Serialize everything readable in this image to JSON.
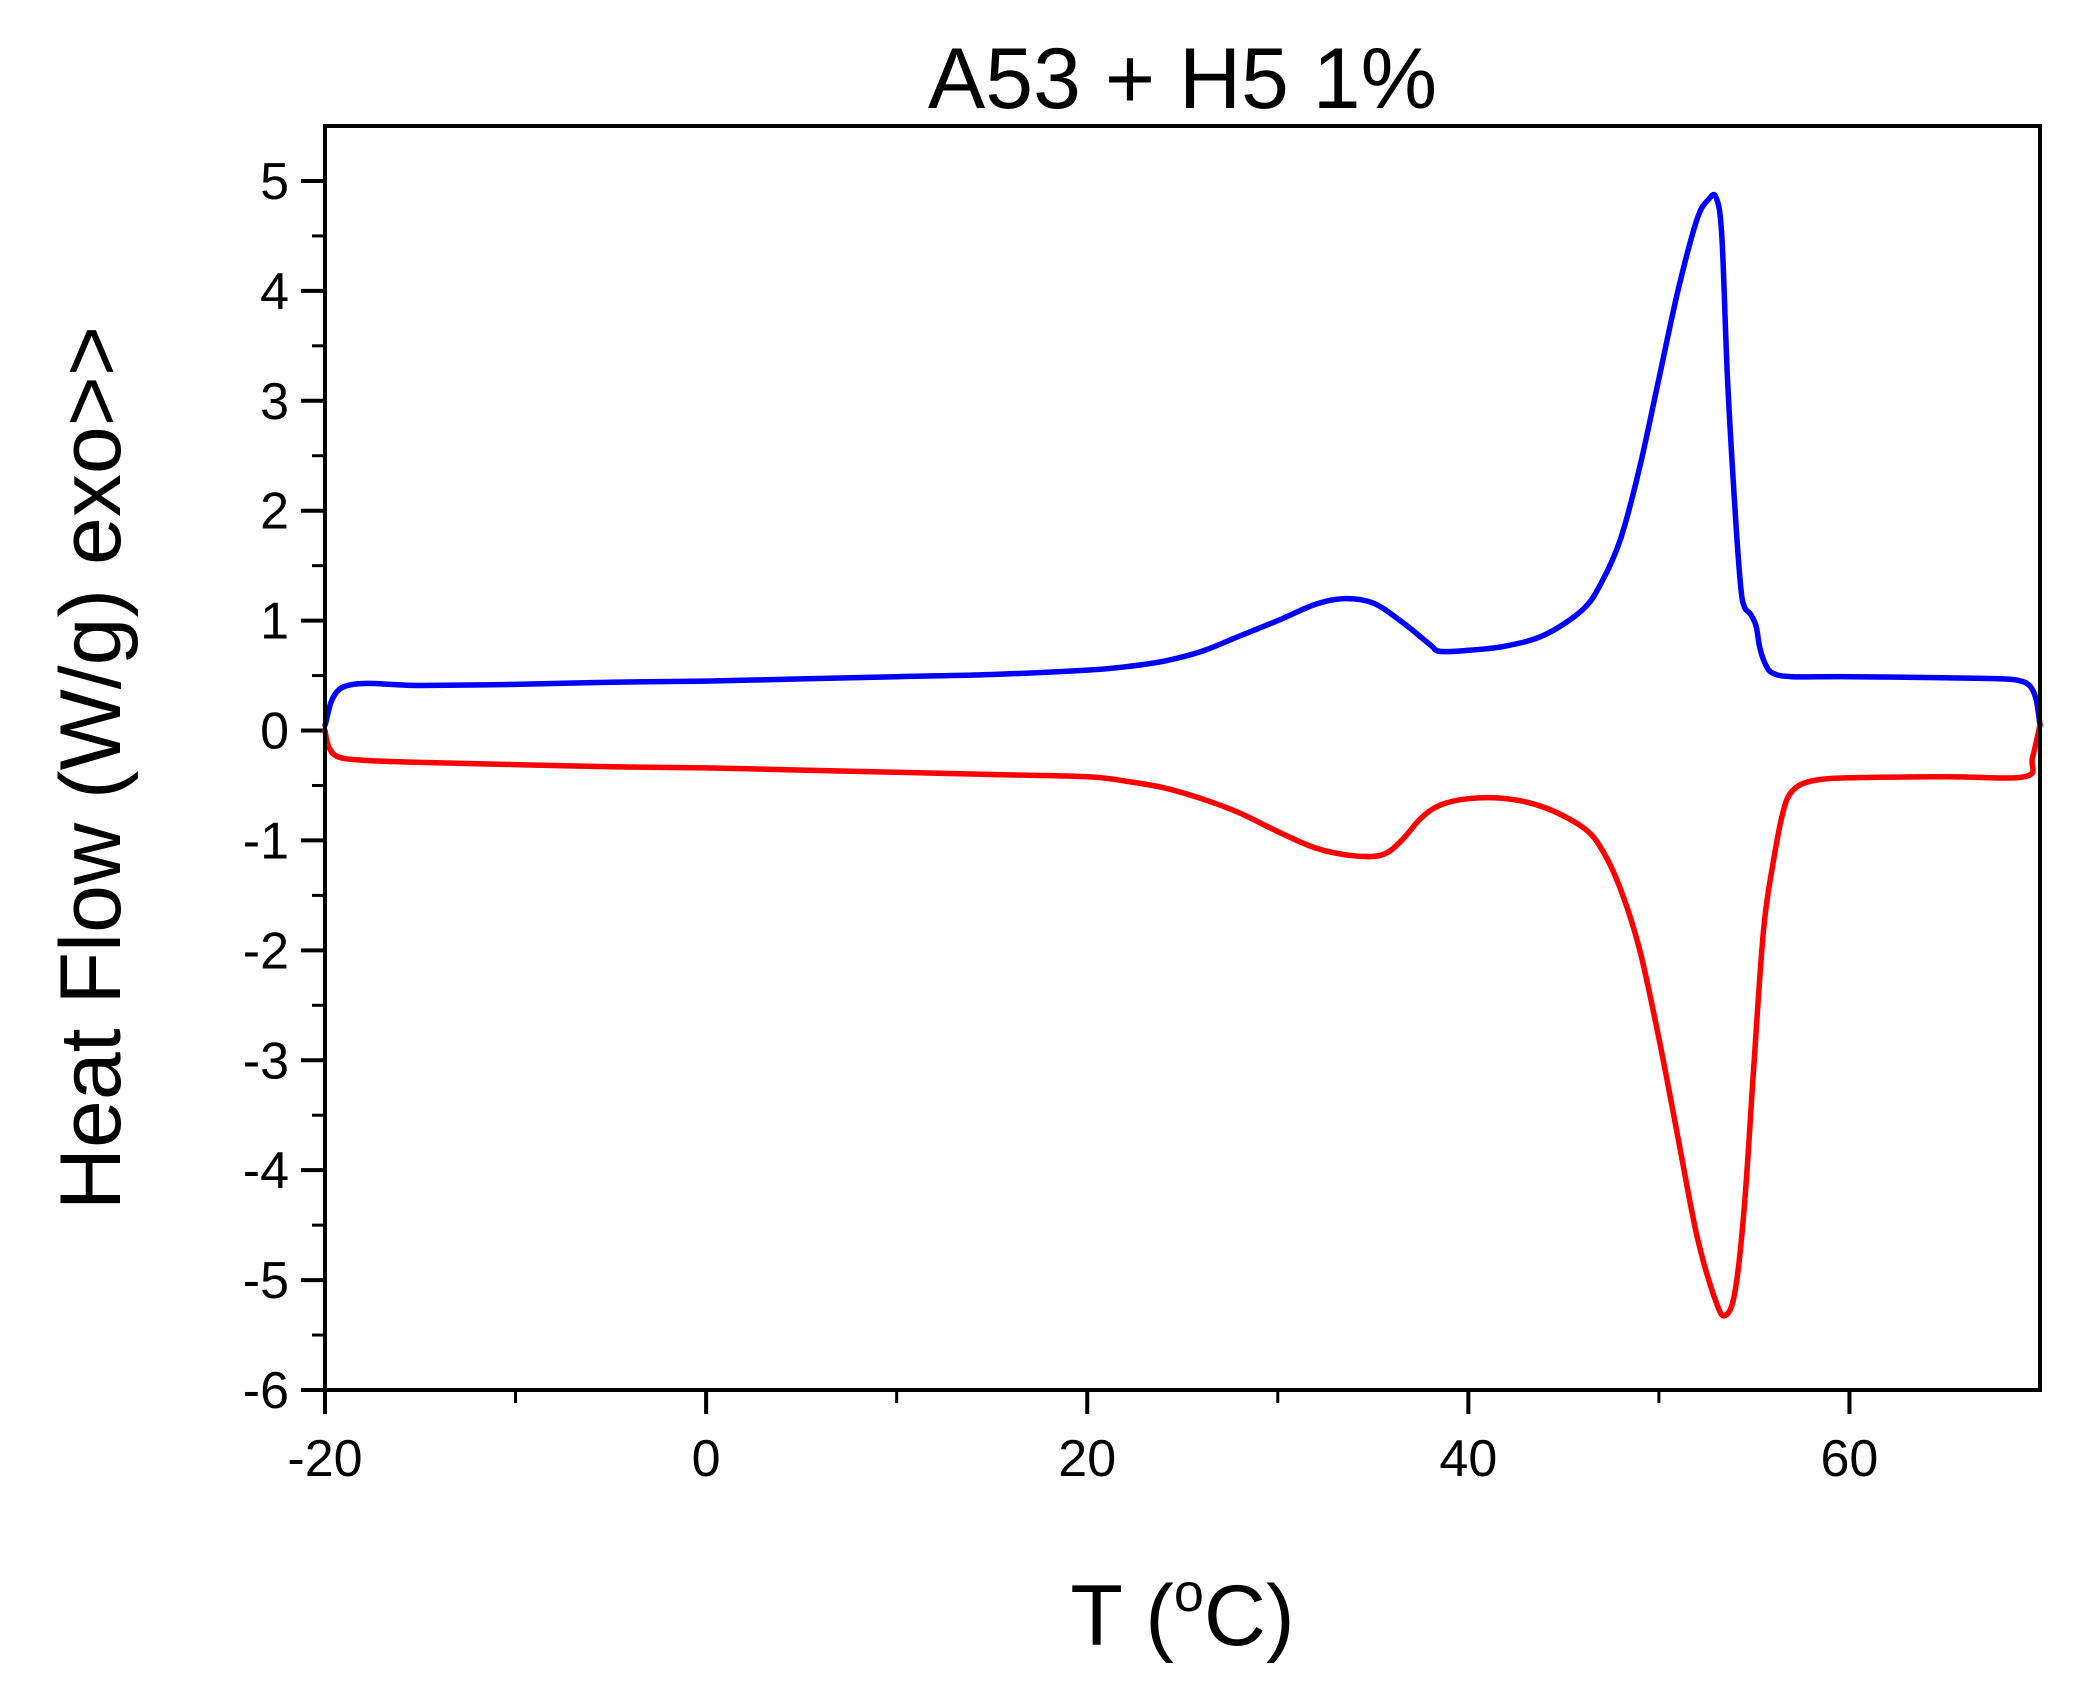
{
  "chart_data": {
    "type": "line",
    "title": "A53 + H5 1%",
    "xlabel": {
      "prefix": "T (",
      "sup": "o",
      "suffix": "C)"
    },
    "ylabel": "Heat Flow (W/g)  exo>>",
    "xlim": [
      -20,
      70
    ],
    "ylim": [
      -6,
      5.5
    ],
    "x_ticks": [
      -20,
      0,
      20,
      40,
      60
    ],
    "x_tick_labels": [
      "-20",
      "0",
      "20",
      "40",
      "60"
    ],
    "y_ticks": [
      -6,
      -5,
      -4,
      -3,
      -2,
      -1,
      0,
      1,
      2,
      3,
      4,
      5
    ],
    "y_tick_labels": [
      "-6",
      "-5",
      "-4",
      "-3",
      "-2",
      "-1",
      "0",
      "1",
      "2",
      "3",
      "4",
      "5"
    ],
    "grid": false,
    "series": [
      {
        "color": "#0000ff",
        "x": [
          -20.0,
          -19.0,
          -15,
          -10,
          -5,
          0,
          5,
          10,
          15,
          20,
          22,
          24,
          26,
          28,
          30,
          32,
          33.5,
          35,
          36.5,
          38,
          38.5,
          40,
          42,
          44,
          46,
          47,
          48,
          49,
          50,
          51,
          52,
          52.6,
          53.0,
          53.3,
          53.6,
          54.0,
          54.3,
          54.5,
          54.8,
          55.1,
          55.3,
          55.6,
          56.0,
          57.0,
          60,
          65,
          68,
          69,
          69.5,
          69.8,
          70.0
        ],
        "y": [
          0.05,
          0.4,
          0.41,
          0.42,
          0.44,
          0.45,
          0.47,
          0.49,
          0.51,
          0.55,
          0.58,
          0.63,
          0.72,
          0.86,
          1.0,
          1.15,
          1.2,
          1.16,
          0.99,
          0.78,
          0.72,
          0.73,
          0.77,
          0.87,
          1.1,
          1.35,
          1.75,
          2.4,
          3.2,
          4.0,
          4.65,
          4.83,
          4.85,
          4.5,
          3.2,
          2.0,
          1.3,
          1.12,
          1.06,
          0.95,
          0.75,
          0.6,
          0.52,
          0.49,
          0.49,
          0.48,
          0.47,
          0.45,
          0.4,
          0.28,
          0.05
        ]
      },
      {
        "color": "#ff0000",
        "x": [
          -20.0,
          -19.8,
          -19.3,
          -18,
          -15,
          -10,
          -5,
          0,
          5,
          10,
          15,
          20,
          22,
          24,
          26,
          28,
          30,
          32,
          34,
          35.5,
          36.5,
          37.5,
          38.5,
          40,
          42,
          44,
          46,
          47,
          48,
          49,
          50,
          51,
          52,
          53,
          53.5,
          54.0,
          54.5,
          55.0,
          55.5,
          56,
          56.5,
          57,
          58,
          60,
          65,
          69.2,
          69.6,
          70.0
        ],
        "y": [
          0.0,
          -0.15,
          -0.24,
          -0.27,
          -0.29,
          -0.31,
          -0.33,
          -0.34,
          -0.36,
          -0.38,
          -0.4,
          -0.42,
          -0.46,
          -0.52,
          -0.62,
          -0.75,
          -0.92,
          -1.07,
          -1.14,
          -1.13,
          -1.0,
          -0.8,
          -0.68,
          -0.62,
          -0.62,
          -0.7,
          -0.88,
          -1.08,
          -1.45,
          -2.0,
          -2.8,
          -3.7,
          -4.6,
          -5.2,
          -5.32,
          -5.1,
          -4.3,
          -3.0,
          -1.8,
          -1.2,
          -0.75,
          -0.55,
          -0.46,
          -0.43,
          -0.42,
          -0.42,
          -0.25,
          0.05
        ]
      }
    ]
  }
}
